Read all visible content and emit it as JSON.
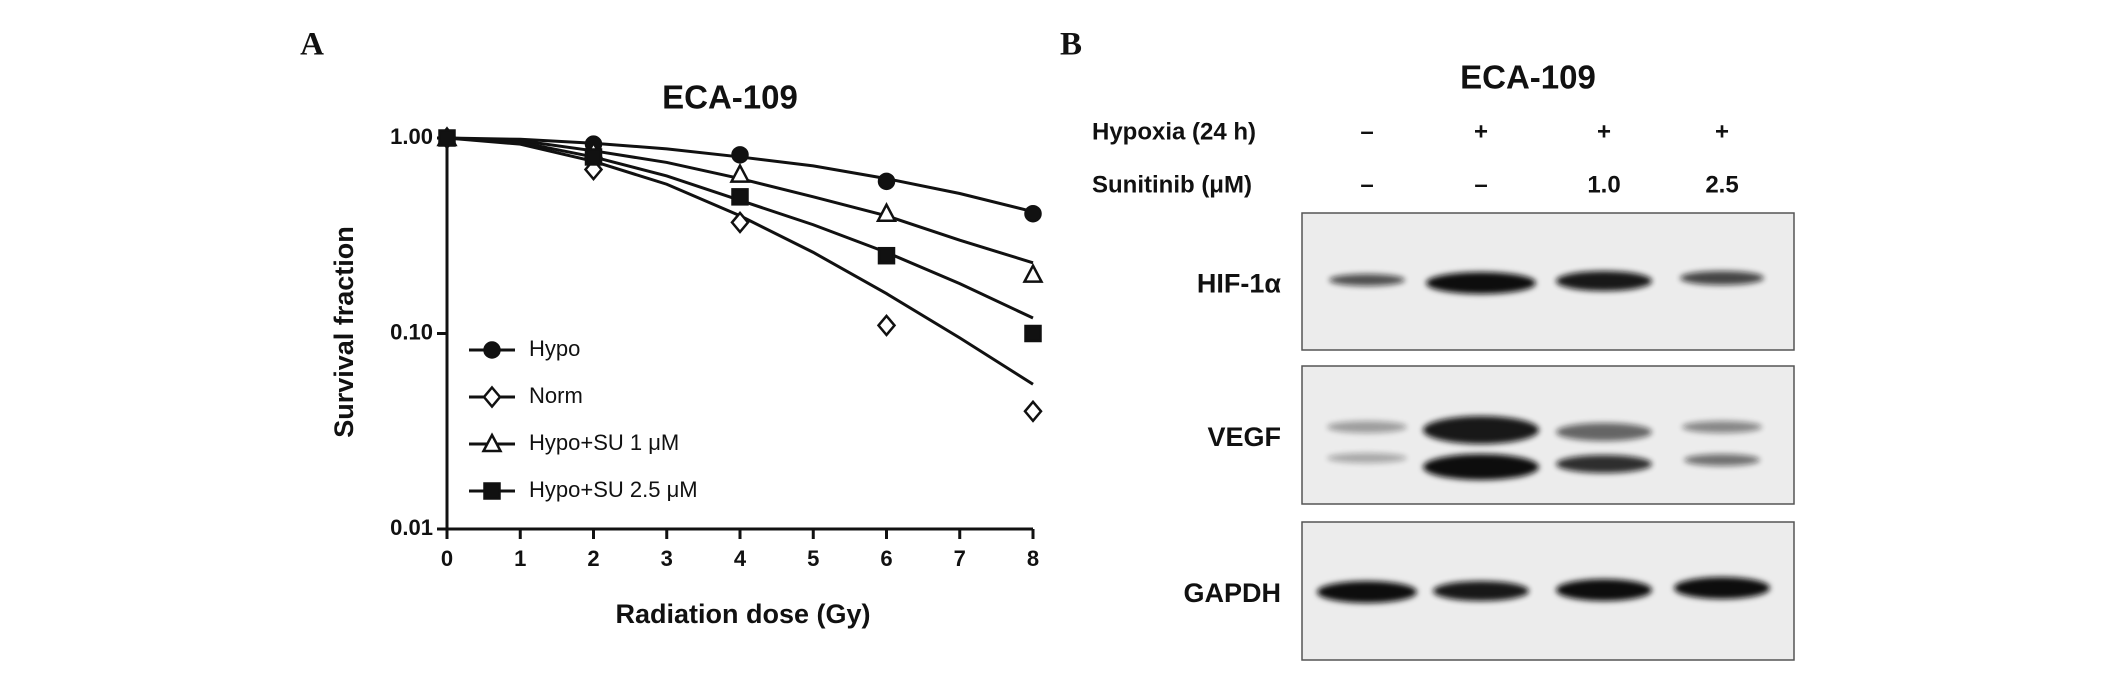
{
  "chart_data": {
    "type": "line",
    "panel_label": "A",
    "title": "ECA-109",
    "x_label": "Radiation dose (Gy)",
    "y_label": "Survival fraction",
    "x": [
      0,
      2,
      4,
      6,
      8
    ],
    "fit_x": [
      0,
      1,
      2,
      3,
      4,
      5,
      6,
      7,
      8
    ],
    "xlim": [
      0,
      8
    ],
    "xticks": [
      0,
      1,
      2,
      3,
      4,
      5,
      6,
      7,
      8
    ],
    "ylim": [
      0.01,
      1
    ],
    "y_scale": "log",
    "yticks": [
      {
        "value": 1,
        "label": "1.00"
      },
      {
        "value": 0.1,
        "label": "0.10"
      },
      0.01
    ],
    "grid": false,
    "legend": "lower-left",
    "series": [
      {
        "name": "Hypo",
        "color": "#111111",
        "marker": "circle",
        "filled": true,
        "values": [
          1,
          0.93,
          0.82,
          0.6,
          0.41
        ],
        "fit": [
          1,
          0.985,
          0.94,
          0.88,
          0.8,
          0.72,
          0.62,
          0.52,
          0.42
        ]
      },
      {
        "name": "Norm",
        "color": "#111111",
        "marker": "diamond",
        "filled": false,
        "values": [
          1,
          0.69,
          0.37,
          0.11,
          0.04
        ],
        "fit": [
          1,
          0.93,
          0.76,
          0.58,
          0.4,
          0.26,
          0.16,
          0.095,
          0.055
        ]
      },
      {
        "name": "Hypo+SU 1 μM",
        "color": "#111111",
        "marker": "triangle",
        "filled": false,
        "values": [
          1,
          0.85,
          0.65,
          0.41,
          0.2
        ],
        "fit": [
          1,
          0.97,
          0.86,
          0.75,
          0.62,
          0.5,
          0.4,
          0.3,
          0.23
        ]
      },
      {
        "name": "Hypo+SU 2.5 μM",
        "color": "#111111",
        "marker": "square",
        "filled": true,
        "values": [
          1,
          0.8,
          0.5,
          0.25,
          0.1
        ],
        "fit": [
          1,
          0.95,
          0.8,
          0.64,
          0.48,
          0.36,
          0.26,
          0.18,
          0.12
        ]
      }
    ]
  },
  "blot": {
    "panel_label": "B",
    "title": "ECA-109",
    "conditions": [
      {
        "label": "Hypoxia (24 h)",
        "lanes": [
          "–",
          "+",
          "+",
          "+"
        ]
      },
      {
        "label": "Sunitinib (μM)",
        "lanes": [
          "–",
          "–",
          "1.0",
          "2.5"
        ]
      }
    ],
    "proteins": [
      "HIF-1α",
      "VEGF",
      "GAPDH"
    ]
  }
}
